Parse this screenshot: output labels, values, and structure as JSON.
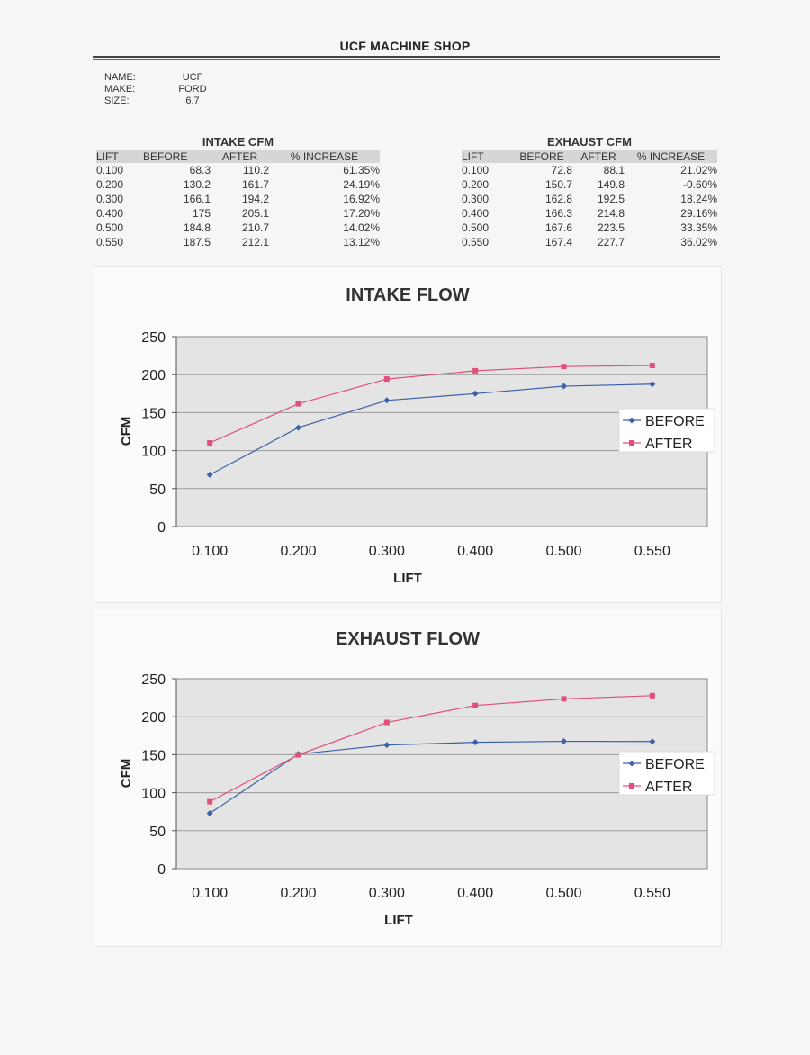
{
  "header": {
    "title": "UCF MACHINE SHOP"
  },
  "info": [
    {
      "label": "NAME:",
      "value": "UCF"
    },
    {
      "label": "MAKE:",
      "value": "FORD"
    },
    {
      "label": "SIZE:",
      "value": "6.7"
    }
  ],
  "intake_table": {
    "title": "INTAKE CFM",
    "headers": [
      "LIFT",
      "BEFORE",
      "AFTER",
      "% INCREASE"
    ],
    "rows": [
      [
        "0.100",
        "68.3",
        "110.2",
        "61.35%"
      ],
      [
        "0.200",
        "130.2",
        "161.7",
        "24.19%"
      ],
      [
        "0.300",
        "166.1",
        "194.2",
        "16.92%"
      ],
      [
        "0.400",
        "175",
        "205.1",
        "17.20%"
      ],
      [
        "0.500",
        "184.8",
        "210.7",
        "14.02%"
      ],
      [
        "0.550",
        "187.5",
        "212.1",
        "13.12%"
      ]
    ]
  },
  "exhaust_table": {
    "title": "EXHAUST CFM",
    "headers": [
      "LIFT",
      "BEFORE",
      "AFTER",
      "% INCREASE"
    ],
    "rows": [
      [
        "0.100",
        "72.8",
        "88.1",
        "21.02%"
      ],
      [
        "0.200",
        "150.7",
        "149.8",
        "-0.60%"
      ],
      [
        "0.300",
        "162.8",
        "192.5",
        "18.24%"
      ],
      [
        "0.400",
        "166.3",
        "214.8",
        "29.16%"
      ],
      [
        "0.500",
        "167.6",
        "223.5",
        "33.35%"
      ],
      [
        "0.550",
        "167.4",
        "227.7",
        "36.02%"
      ]
    ]
  },
  "colors": {
    "before": "#3a62a8",
    "after": "#e0507a",
    "plot_bg": "#e4e4e4",
    "grid": "#9a9a9a"
  },
  "chart_data": [
    {
      "type": "line",
      "title": "INTAKE FLOW",
      "xlabel": "LIFT",
      "ylabel": "CFM",
      "categories": [
        "0.100",
        "0.200",
        "0.300",
        "0.400",
        "0.500",
        "0.550"
      ],
      "series": [
        {
          "name": "BEFORE",
          "values": [
            68.3,
            130.2,
            166.1,
            175,
            184.8,
            187.5
          ]
        },
        {
          "name": "AFTER",
          "values": [
            110.2,
            161.7,
            194.2,
            205.1,
            210.7,
            212.1
          ]
        }
      ],
      "ylim": [
        0,
        250
      ],
      "yticks": [
        "0",
        "50",
        "100",
        "150",
        "200",
        "250"
      ],
      "grid": true,
      "legend": "right"
    },
    {
      "type": "line",
      "title": "EXHAUST FLOW",
      "xlabel": "LIFT",
      "ylabel": "CFM",
      "categories": [
        "0.100",
        "0.200",
        "0.300",
        "0.400",
        "0.500",
        "0.550"
      ],
      "series": [
        {
          "name": "BEFORE",
          "values": [
            72.8,
            150.7,
            162.8,
            166.3,
            167.6,
            167.4
          ]
        },
        {
          "name": "AFTER",
          "values": [
            88.1,
            149.8,
            192.5,
            214.8,
            223.5,
            227.7
          ]
        }
      ],
      "ylim": [
        0,
        250
      ],
      "yticks": [
        "0",
        "50",
        "100",
        "150",
        "200",
        "250"
      ],
      "grid": true,
      "legend": "right"
    }
  ]
}
